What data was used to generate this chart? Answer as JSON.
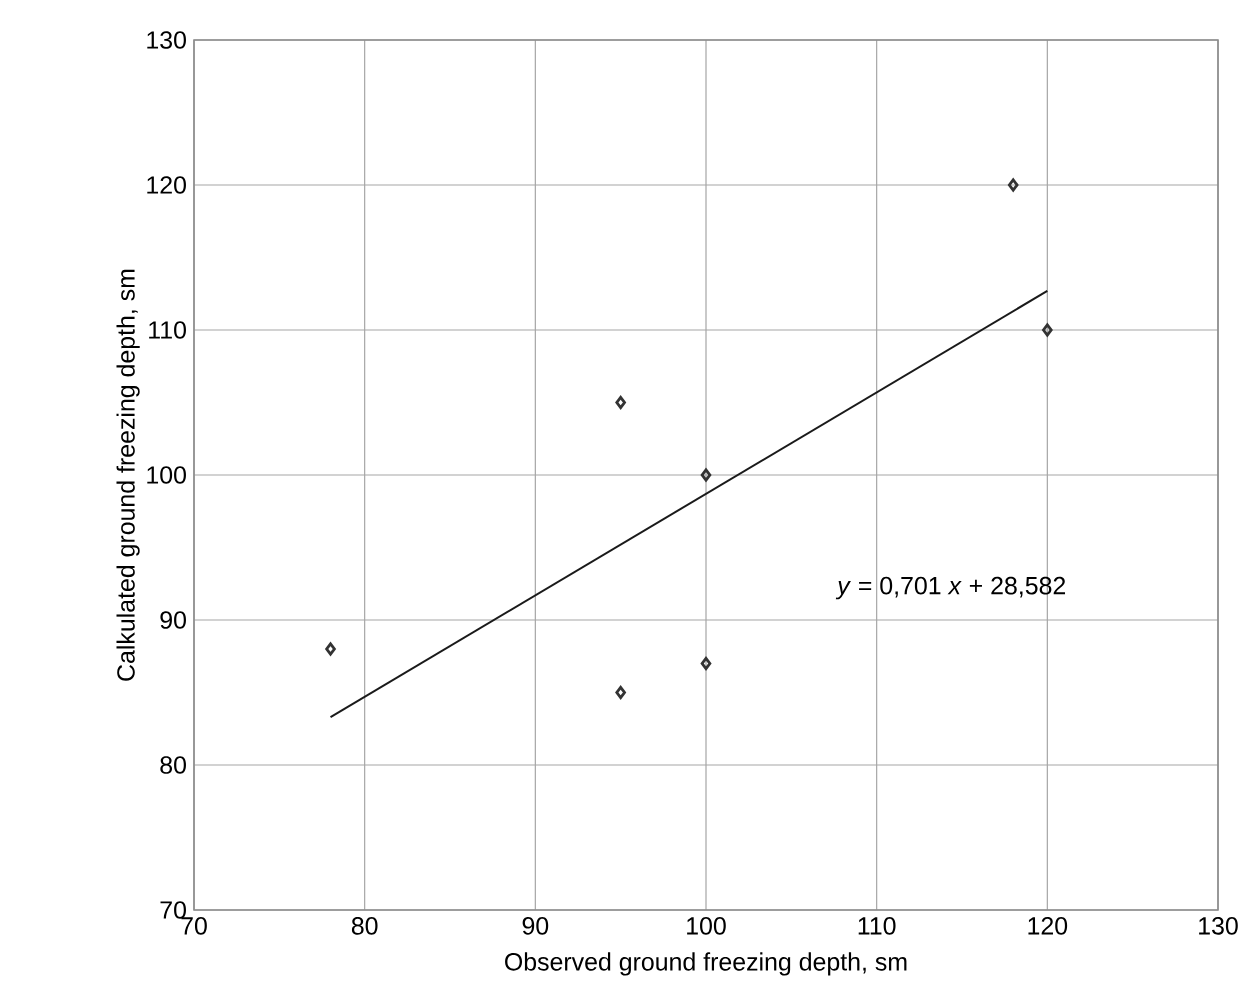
{
  "chart_data": {
    "type": "scatter",
    "xlabel": "Observed ground freezing depth, sm",
    "ylabel": "Calkulated ground freezing depth, sm",
    "series": [
      {
        "color": "#333333",
        "marker": "diamond",
        "x": [
          78,
          95,
          95,
          100,
          100,
          118,
          120
        ],
        "values": [
          88,
          105,
          85,
          100,
          87,
          120,
          110
        ]
      },
      {
        "type": "line",
        "color": "#1a1a1a",
        "marker": "none",
        "line_style": "solid",
        "x": [
          78,
          120
        ],
        "values": [
          83.3,
          112.7
        ]
      }
    ],
    "xlim": [
      70,
      130
    ],
    "ylim": [
      70,
      130
    ],
    "xticks": [
      70,
      80,
      90,
      100,
      110,
      120,
      130
    ],
    "yticks": [
      70,
      80,
      90,
      100,
      110,
      120,
      130
    ],
    "grid": true,
    "annotations": [
      "*y* = 0,701 *x* + 28,582"
    ]
  }
}
